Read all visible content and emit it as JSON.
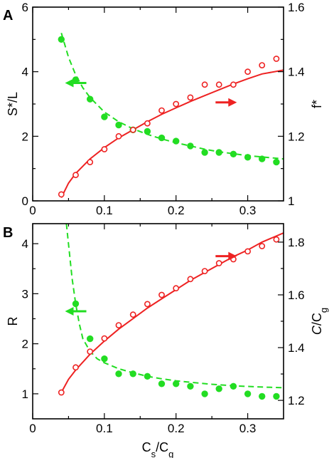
{
  "chart_data": [
    {
      "panel": "A",
      "type": "scatter",
      "xlabel": "",
      "ylabel_left": "S*/L",
      "ylabel_right": "f*",
      "xlim": [
        0,
        0.35
      ],
      "ylim_left": [
        0,
        6
      ],
      "ylim_right": [
        1.0,
        1.6
      ],
      "xticks": [
        "0",
        "0.1",
        "0.2",
        "0.3"
      ],
      "yticks_left": [
        "0",
        "2",
        "4",
        "6"
      ],
      "yticks_right": [
        "1",
        "1.2",
        "1.4",
        "1.6"
      ],
      "x": [
        0.04,
        0.06,
        0.08,
        0.1,
        0.12,
        0.14,
        0.16,
        0.18,
        0.2,
        0.22,
        0.24,
        0.26,
        0.28,
        0.3,
        0.32,
        0.34
      ],
      "series": [
        {
          "axis": "left",
          "color": "#22dd22",
          "marker": "filled-circle",
          "values": [
            5.0,
            3.75,
            3.15,
            2.6,
            2.35,
            2.2,
            2.15,
            1.95,
            1.85,
            1.7,
            1.5,
            1.5,
            1.45,
            1.35,
            1.3,
            1.2
          ]
        },
        {
          "axis": "right",
          "color": "#ee2222",
          "marker": "open-circle",
          "values": [
            1.02,
            1.08,
            1.12,
            1.16,
            1.2,
            1.22,
            1.24,
            1.28,
            1.3,
            1.32,
            1.36,
            1.36,
            1.36,
            1.4,
            1.42,
            1.44
          ]
        }
      ],
      "fits": [
        {
          "axis": "left",
          "style": "dashed",
          "color": "#22dd22",
          "points": [
            [
              0.04,
              5.2
            ],
            [
              0.05,
              4.45
            ],
            [
              0.06,
              3.9
            ],
            [
              0.07,
              3.5
            ],
            [
              0.08,
              3.2
            ],
            [
              0.1,
              2.75
            ],
            [
              0.12,
              2.45
            ],
            [
              0.14,
              2.23
            ],
            [
              0.16,
              2.06
            ],
            [
              0.18,
              1.92
            ],
            [
              0.2,
              1.8
            ],
            [
              0.22,
              1.7
            ],
            [
              0.24,
              1.6
            ],
            [
              0.26,
              1.52
            ],
            [
              0.28,
              1.46
            ],
            [
              0.3,
              1.4
            ],
            [
              0.32,
              1.36
            ],
            [
              0.35,
              1.3
            ]
          ]
        },
        {
          "axis": "right",
          "style": "solid",
          "color": "#ee2222",
          "points": [
            [
              0.04,
              1.01
            ],
            [
              0.05,
              1.055
            ],
            [
              0.06,
              1.085
            ],
            [
              0.08,
              1.13
            ],
            [
              0.1,
              1.165
            ],
            [
              0.12,
              1.195
            ],
            [
              0.14,
              1.22
            ],
            [
              0.16,
              1.245
            ],
            [
              0.18,
              1.268
            ],
            [
              0.2,
              1.288
            ],
            [
              0.22,
              1.308
            ],
            [
              0.24,
              1.326
            ],
            [
              0.26,
              1.344
            ],
            [
              0.28,
              1.362
            ],
            [
              0.3,
              1.378
            ],
            [
              0.32,
              1.393
            ],
            [
              0.35,
              1.405
            ]
          ]
        }
      ],
      "arrows": [
        {
          "color": "#22dd22",
          "direction": "left",
          "x": 0.06,
          "y": 3.65
        },
        {
          "color": "#ee2222",
          "direction": "right",
          "x": 0.27,
          "y": 3.05
        }
      ]
    },
    {
      "panel": "B",
      "type": "scatter",
      "xlabel": "Cs/Cg",
      "ylabel_left": "R",
      "ylabel_right": "C/Cg",
      "xlim": [
        0,
        0.35
      ],
      "ylim_left": [
        0.5,
        4.4
      ],
      "ylim_right": [
        1.13,
        1.87
      ],
      "xticks": [
        "0",
        "0.1",
        "0.2",
        "0.3"
      ],
      "yticks_left": [
        "1",
        "2",
        "3",
        "4"
      ],
      "yticks_right": [
        "1.2",
        "1.4",
        "1.6",
        "1.8"
      ],
      "x": [
        0.04,
        0.06,
        0.08,
        0.1,
        0.12,
        0.14,
        0.16,
        0.18,
        0.2,
        0.22,
        0.24,
        0.26,
        0.28,
        0.3,
        0.32,
        0.34
      ],
      "series": [
        {
          "axis": "left",
          "color": "#22dd22",
          "marker": "filled-circle",
          "values": [
            4.5,
            2.8,
            2.1,
            1.7,
            1.4,
            1.4,
            1.35,
            1.2,
            1.2,
            1.15,
            1.0,
            1.1,
            1.15,
            1.0,
            0.95,
            0.95
          ]
        },
        {
          "axis": "right",
          "color": "#ee2222",
          "marker": "open-circle",
          "values": [
            1.23,
            1.325,
            1.385,
            1.435,
            1.485,
            1.525,
            1.565,
            1.6,
            1.625,
            1.66,
            1.69,
            1.72,
            1.735,
            1.765,
            1.785,
            1.81
          ]
        }
      ],
      "fits": [
        {
          "axis": "left",
          "style": "dashed",
          "color": "#22dd22",
          "points": [
            [
              0.047,
              4.4
            ],
            [
              0.055,
              3.3
            ],
            [
              0.06,
              2.8
            ],
            [
              0.065,
              2.4
            ],
            [
              0.07,
              2.1
            ],
            [
              0.08,
              1.85
            ],
            [
              0.09,
              1.7
            ],
            [
              0.1,
              1.62
            ],
            [
              0.12,
              1.5
            ],
            [
              0.14,
              1.42
            ],
            [
              0.16,
              1.35
            ],
            [
              0.18,
              1.3
            ],
            [
              0.2,
              1.26
            ],
            [
              0.22,
              1.23
            ],
            [
              0.25,
              1.19
            ],
            [
              0.28,
              1.16
            ],
            [
              0.31,
              1.14
            ],
            [
              0.35,
              1.12
            ]
          ]
        },
        {
          "axis": "right",
          "style": "solid",
          "color": "#ee2222",
          "points": [
            [
              0.04,
              1.23
            ],
            [
              0.05,
              1.28
            ],
            [
              0.06,
              1.315
            ],
            [
              0.08,
              1.375
            ],
            [
              0.1,
              1.425
            ],
            [
              0.12,
              1.47
            ],
            [
              0.14,
              1.51
            ],
            [
              0.16,
              1.55
            ],
            [
              0.18,
              1.585
            ],
            [
              0.2,
              1.62
            ],
            [
              0.22,
              1.655
            ],
            [
              0.24,
              1.685
            ],
            [
              0.26,
              1.715
            ],
            [
              0.28,
              1.745
            ],
            [
              0.3,
              1.77
            ],
            [
              0.32,
              1.8
            ],
            [
              0.35,
              1.835
            ]
          ]
        }
      ],
      "arrows": [
        {
          "color": "#22dd22",
          "direction": "left",
          "x": 0.06,
          "y": 2.65
        },
        {
          "color": "#ee2222",
          "direction": "right",
          "x": 0.27,
          "y": 3.75
        }
      ]
    }
  ]
}
